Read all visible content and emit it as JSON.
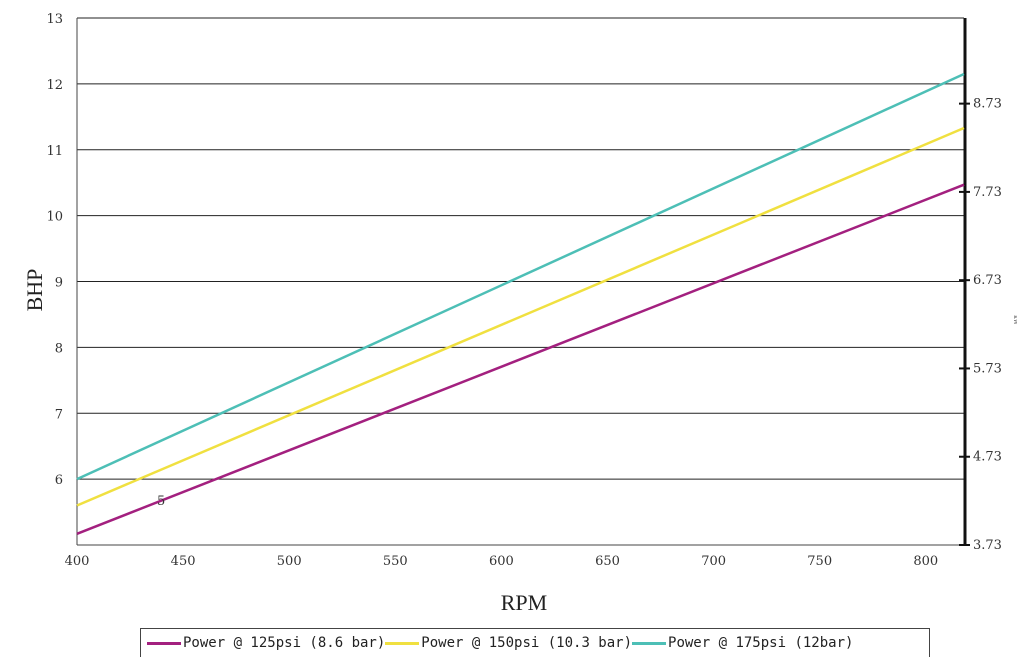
{
  "chart_data": {
    "type": "line",
    "xlabel": "RPM",
    "ylabel": "BHP",
    "x": [
      400,
      818
    ],
    "xlim": [
      400,
      818
    ],
    "ylim": [
      5,
      13
    ],
    "x_ticks": [
      "400",
      "450",
      "500",
      "550",
      "600",
      "650",
      "700",
      "750",
      "800"
    ],
    "y_ticks": [
      "6",
      "7",
      "8",
      "9",
      "10",
      "11",
      "12",
      "13"
    ],
    "y2_ticks": [
      "3.73",
      "4.73",
      "5.73",
      "6.73",
      "7.73",
      "8.73"
    ],
    "y2_values": [
      3.73,
      4.73,
      5.73,
      6.73,
      7.73,
      8.73
    ],
    "y2_label": "kW",
    "y2_lim": [
      3.73,
      9.7
    ],
    "stray_label": "5",
    "grid": true,
    "legend_position": "bottom",
    "series": [
      {
        "name": "Power @ 125psi (8.6 bar)",
        "color": "#a3207f",
        "values": [
          5.17,
          10.47
        ]
      },
      {
        "name": "Power @ 150psi (10.3 bar)",
        "color": "#f0e040",
        "values": [
          5.6,
          11.33
        ]
      },
      {
        "name": "Power @ 175psi (12bar)",
        "color": "#4dbfb6",
        "values": [
          6.0,
          12.15
        ]
      }
    ]
  }
}
